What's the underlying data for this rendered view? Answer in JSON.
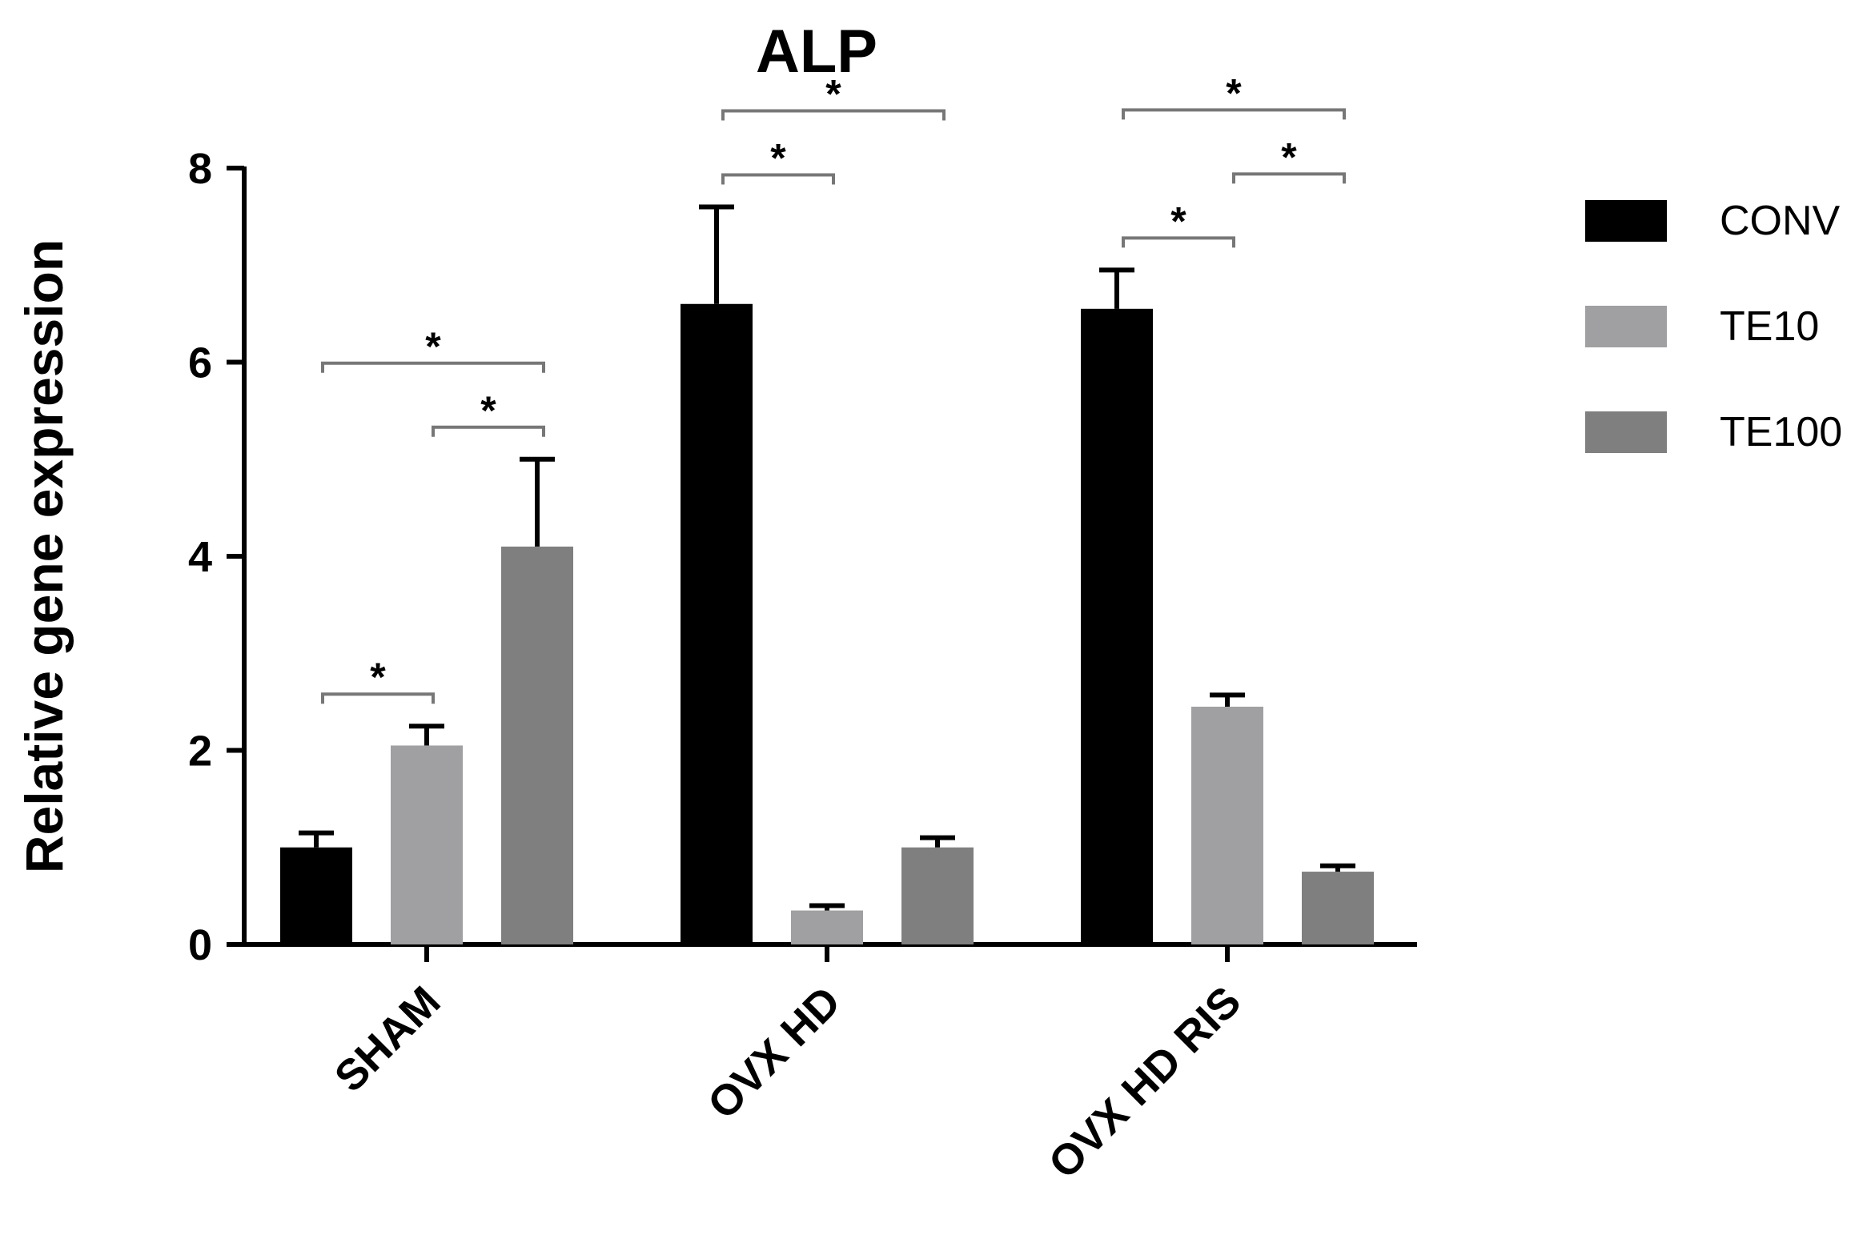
{
  "chart_data": {
    "type": "bar",
    "title": "ALP",
    "xlabel": "",
    "ylabel": "Relative gene expression",
    "ylim": [
      0,
      8
    ],
    "yticks": [
      "0",
      "2",
      "4",
      "6",
      "8"
    ],
    "categories": [
      "SHAM",
      "OVX HD",
      "OVX HD RIS"
    ],
    "series": [
      {
        "name": "CONV",
        "color": "#000000",
        "values": [
          1.0,
          6.6,
          6.55
        ],
        "errors": [
          0.15,
          1.0,
          0.4
        ]
      },
      {
        "name": "TE10",
        "color": "#a0a0a2",
        "values": [
          2.05,
          0.35,
          2.45
        ],
        "errors": [
          0.2,
          0.05,
          0.12
        ]
      },
      {
        "name": "TE100",
        "color": "#7f7f7f",
        "values": [
          4.1,
          1.0,
          0.75
        ],
        "errors": [
          0.9,
          0.1,
          0.06
        ]
      }
    ],
    "legend": {
      "position": "right"
    },
    "grid": false,
    "significance": [
      {
        "group": 0,
        "from": 0,
        "to": 1,
        "label": "*"
      },
      {
        "group": 0,
        "from": 1,
        "to": 2,
        "label": "*"
      },
      {
        "group": 0,
        "from": 0,
        "to": 2,
        "label": "*"
      },
      {
        "group": 1,
        "from": 0,
        "to": 1,
        "label": "*"
      },
      {
        "group": 1,
        "from": 0,
        "to": 2,
        "label": "*"
      },
      {
        "group": 2,
        "from": 0,
        "to": 1,
        "label": "*"
      },
      {
        "group": 2,
        "from": 0,
        "to": 2,
        "label": "*"
      },
      {
        "group": 2,
        "from": 1,
        "to": 2,
        "label": "*"
      }
    ]
  }
}
